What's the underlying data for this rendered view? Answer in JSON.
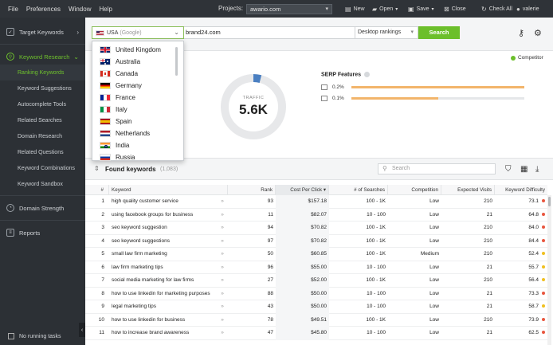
{
  "menu": {
    "items": [
      "File",
      "Preferences",
      "Window",
      "Help"
    ],
    "projects_label": "Projects:",
    "project_value": "awario.com"
  },
  "toolbar": {
    "new": "New",
    "open": "Open",
    "save": "Save",
    "close": "Close",
    "check_all": "Check All",
    "user": "valerie"
  },
  "sidebar": {
    "target_keywords": "Target Keywords",
    "keyword_research": "Keyword Research",
    "sub_items": [
      "Ranking Keywords",
      "Keyword Suggestions",
      "Autocomplete Tools",
      "Related Searches",
      "Domain Research",
      "Related Questions",
      "Keyword Combinations",
      "Keyword Sandbox"
    ],
    "domain_strength": "Domain Strength",
    "reports": "Reports",
    "no_running_tasks": "No running tasks"
  },
  "search": {
    "country": "USA",
    "engine": "(Google)",
    "domain": "brand24.com",
    "rankings_mode": "Desktop rankings",
    "button": "Search"
  },
  "country_dropdown": [
    {
      "name": "United Kingdom",
      "flag": "flag-uk"
    },
    {
      "name": "Australia",
      "flag": "flag-au"
    },
    {
      "name": "Canada",
      "flag": "flag-ca"
    },
    {
      "name": "Germany",
      "flag": "flag-de"
    },
    {
      "name": "France",
      "flag": "flag-fr"
    },
    {
      "name": "Italy",
      "flag": "flag-it"
    },
    {
      "name": "Spain",
      "flag": "flag-es"
    },
    {
      "name": "Netherlands",
      "flag": "flag-nl"
    },
    {
      "name": "India",
      "flag": "flag-in"
    },
    {
      "name": "Russia",
      "flag": "flag-ru"
    }
  ],
  "overview": {
    "competitor_label": "Competitor",
    "traffic_label": "TRAFFIC",
    "traffic_value": "5.6K",
    "traffic_share": 0.04,
    "serp_title": "SERP Features",
    "serp_rows": [
      {
        "value": "0.2%",
        "fill": 1.0,
        "icon": "link-icon"
      },
      {
        "value": "0.1%",
        "fill": 0.5,
        "icon": "image-icon"
      }
    ]
  },
  "found": {
    "title": "Found keywords",
    "count": "(1,083)",
    "search_placeholder": "Search"
  },
  "table": {
    "headers": {
      "num": "#",
      "keyword": "Keyword",
      "rank": "Rank",
      "cpc": "Cost Per Click",
      "searches": "# of Searches",
      "competition": "Competition",
      "visits": "Expected Visits",
      "kd": "Keyword Difficulty"
    },
    "rows": [
      {
        "num": "1",
        "keyword": "high quality customer service",
        "rank": "93",
        "cpc": "$157.18",
        "searches": "100 - 1K",
        "competition": "Low",
        "visits": "210",
        "kd": "73.1",
        "kd_color": "#e8563f"
      },
      {
        "num": "2",
        "keyword": "using facebook groups for business",
        "rank": "11",
        "cpc": "$82.07",
        "searches": "10 - 100",
        "competition": "Low",
        "visits": "21",
        "kd": "64.8",
        "kd_color": "#e8563f"
      },
      {
        "num": "3",
        "keyword": "seo keyword suggestion",
        "rank": "94",
        "cpc": "$70.82",
        "searches": "100 - 1K",
        "competition": "Low",
        "visits": "210",
        "kd": "84.0",
        "kd_color": "#e8563f"
      },
      {
        "num": "4",
        "keyword": "seo keyword suggestions",
        "rank": "97",
        "cpc": "$70.82",
        "searches": "100 - 1K",
        "competition": "Low",
        "visits": "210",
        "kd": "84.4",
        "kd_color": "#e8563f"
      },
      {
        "num": "5",
        "keyword": "small law firm marketing",
        "rank": "50",
        "cpc": "$60.85",
        "searches": "100 - 1K",
        "competition": "Medium",
        "visits": "210",
        "kd": "52.4",
        "kd_color": "#f0c020"
      },
      {
        "num": "6",
        "keyword": "law firm marketing tips",
        "rank": "96",
        "cpc": "$55.00",
        "searches": "10 - 100",
        "competition": "Low",
        "visits": "21",
        "kd": "55.7",
        "kd_color": "#f0c020"
      },
      {
        "num": "7",
        "keyword": "social media marketing for law firms",
        "rank": "27",
        "cpc": "$52.00",
        "searches": "100 - 1K",
        "competition": "Low",
        "visits": "210",
        "kd": "56.4",
        "kd_color": "#f0c020"
      },
      {
        "num": "8",
        "keyword": "how to use linkedin for marketing purposes",
        "rank": "88",
        "cpc": "$50.00",
        "searches": "10 - 100",
        "competition": "Low",
        "visits": "21",
        "kd": "73.3",
        "kd_color": "#e8563f"
      },
      {
        "num": "9",
        "keyword": "legal marketing tips",
        "rank": "43",
        "cpc": "$50.00",
        "searches": "10 - 100",
        "competition": "Low",
        "visits": "21",
        "kd": "58.7",
        "kd_color": "#f0c020"
      },
      {
        "num": "10",
        "keyword": "how to use linkedin for business",
        "rank": "78",
        "cpc": "$49.51",
        "searches": "100 - 1K",
        "competition": "Low",
        "visits": "210",
        "kd": "73.9",
        "kd_color": "#e8563f"
      },
      {
        "num": "11",
        "keyword": "how to increase brand awareness",
        "rank": "47",
        "cpc": "$45.80",
        "searches": "10 - 100",
        "competition": "Low",
        "visits": "21",
        "kd": "62.5",
        "kd_color": "#e8563f"
      }
    ]
  },
  "colors": {
    "accent_green": "#6cbf2b",
    "donut_blue": "#4a7fc1",
    "serp_bar": "#f2b56b"
  }
}
